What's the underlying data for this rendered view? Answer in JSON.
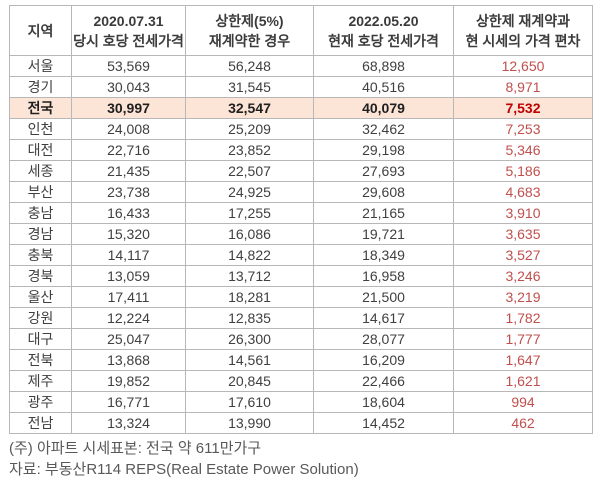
{
  "table": {
    "headers": {
      "region": "지역",
      "price_2020": {
        "line1": "2020.07.31",
        "line2": "당시 호당 전세가격"
      },
      "capped": {
        "line1": "상한제(5%)",
        "line2": "재계약한 경우"
      },
      "price_2022": {
        "line1": "2022.05.20",
        "line2": "현재 호당 전세가격"
      },
      "gap": {
        "line1": "상한제 재계약과",
        "line2": "현 시세의 가격 편차"
      }
    },
    "rows": [
      {
        "region": "서울",
        "price_2020": "53,569",
        "capped": "56,248",
        "price_2022": "68,898",
        "gap": "12,650",
        "highlight": false
      },
      {
        "region": "경기",
        "price_2020": "30,043",
        "capped": "31,545",
        "price_2022": "40,516",
        "gap": "8,971",
        "highlight": false
      },
      {
        "region": "전국",
        "price_2020": "30,997",
        "capped": "32,547",
        "price_2022": "40,079",
        "gap": "7,532",
        "highlight": true
      },
      {
        "region": "인천",
        "price_2020": "24,008",
        "capped": "25,209",
        "price_2022": "32,462",
        "gap": "7,253",
        "highlight": false
      },
      {
        "region": "대전",
        "price_2020": "22,716",
        "capped": "23,852",
        "price_2022": "29,198",
        "gap": "5,346",
        "highlight": false
      },
      {
        "region": "세종",
        "price_2020": "21,435",
        "capped": "22,507",
        "price_2022": "27,693",
        "gap": "5,186",
        "highlight": false
      },
      {
        "region": "부산",
        "price_2020": "23,738",
        "capped": "24,925",
        "price_2022": "29,608",
        "gap": "4,683",
        "highlight": false
      },
      {
        "region": "충남",
        "price_2020": "16,433",
        "capped": "17,255",
        "price_2022": "21,165",
        "gap": "3,910",
        "highlight": false
      },
      {
        "region": "경남",
        "price_2020": "15,320",
        "capped": "16,086",
        "price_2022": "19,721",
        "gap": "3,635",
        "highlight": false
      },
      {
        "region": "충북",
        "price_2020": "14,117",
        "capped": "14,822",
        "price_2022": "18,349",
        "gap": "3,527",
        "highlight": false
      },
      {
        "region": "경북",
        "price_2020": "13,059",
        "capped": "13,712",
        "price_2022": "16,958",
        "gap": "3,246",
        "highlight": false
      },
      {
        "region": "울산",
        "price_2020": "17,411",
        "capped": "18,281",
        "price_2022": "21,500",
        "gap": "3,219",
        "highlight": false
      },
      {
        "region": "강원",
        "price_2020": "12,224",
        "capped": "12,835",
        "price_2022": "14,617",
        "gap": "1,782",
        "highlight": false
      },
      {
        "region": "대구",
        "price_2020": "25,047",
        "capped": "26,300",
        "price_2022": "28,077",
        "gap": "1,777",
        "highlight": false
      },
      {
        "region": "전북",
        "price_2020": "13,868",
        "capped": "14,561",
        "price_2022": "16,209",
        "gap": "1,647",
        "highlight": false
      },
      {
        "region": "제주",
        "price_2020": "19,852",
        "capped": "20,845",
        "price_2022": "22,466",
        "gap": "1,621",
        "highlight": false
      },
      {
        "region": "광주",
        "price_2020": "16,771",
        "capped": "17,610",
        "price_2022": "18,604",
        "gap": "994",
        "highlight": false
      },
      {
        "region": "전남",
        "price_2020": "13,324",
        "capped": "13,990",
        "price_2022": "14,452",
        "gap": "462",
        "highlight": false
      }
    ]
  },
  "footer": {
    "note1": "(주) 아파트 시세표본: 전국 약 611만가구",
    "note2": "자료: 부동산R114 REPS(Real Estate Power Solution)"
  },
  "colors": {
    "highlight_bg": "#fce4d6",
    "gap_text": "#c0504d",
    "gap_text_highlight": "#c00000",
    "border": "#b7b7b7",
    "body_text": "#404040",
    "footer_text": "#595959"
  },
  "chart_data": {
    "type": "table",
    "title": "",
    "columns": [
      "지역",
      "2020.07.31 당시 호당 전세가격",
      "상한제(5%) 재계약한 경우",
      "2022.05.20 현재 호당 전세가격",
      "상한제 재계약과 현 시세의 가격 편차"
    ],
    "rows": [
      [
        "서울",
        53569,
        56248,
        68898,
        12650
      ],
      [
        "경기",
        30043,
        31545,
        40516,
        8971
      ],
      [
        "전국",
        30997,
        32547,
        40079,
        7532
      ],
      [
        "인천",
        24008,
        25209,
        32462,
        7253
      ],
      [
        "대전",
        22716,
        23852,
        29198,
        5346
      ],
      [
        "세종",
        21435,
        22507,
        27693,
        5186
      ],
      [
        "부산",
        23738,
        24925,
        29608,
        4683
      ],
      [
        "충남",
        16433,
        17255,
        21165,
        3910
      ],
      [
        "경남",
        15320,
        16086,
        19721,
        3635
      ],
      [
        "충북",
        14117,
        14822,
        18349,
        3527
      ],
      [
        "경북",
        13059,
        13712,
        16958,
        3246
      ],
      [
        "울산",
        17411,
        18281,
        21500,
        3219
      ],
      [
        "강원",
        12224,
        12835,
        14617,
        1782
      ],
      [
        "대구",
        25047,
        26300,
        28077,
        1777
      ],
      [
        "전북",
        13868,
        14561,
        16209,
        1647
      ],
      [
        "제주",
        19852,
        20845,
        22466,
        1621
      ],
      [
        "광주",
        16771,
        17610,
        18604,
        994
      ],
      [
        "전남",
        13324,
        13990,
        14452,
        462
      ]
    ],
    "highlighted_row": "전국",
    "notes": [
      "(주) 아파트 시세표본: 전국 약 611만가구",
      "자료: 부동산R114 REPS(Real Estate Power Solution)"
    ]
  }
}
